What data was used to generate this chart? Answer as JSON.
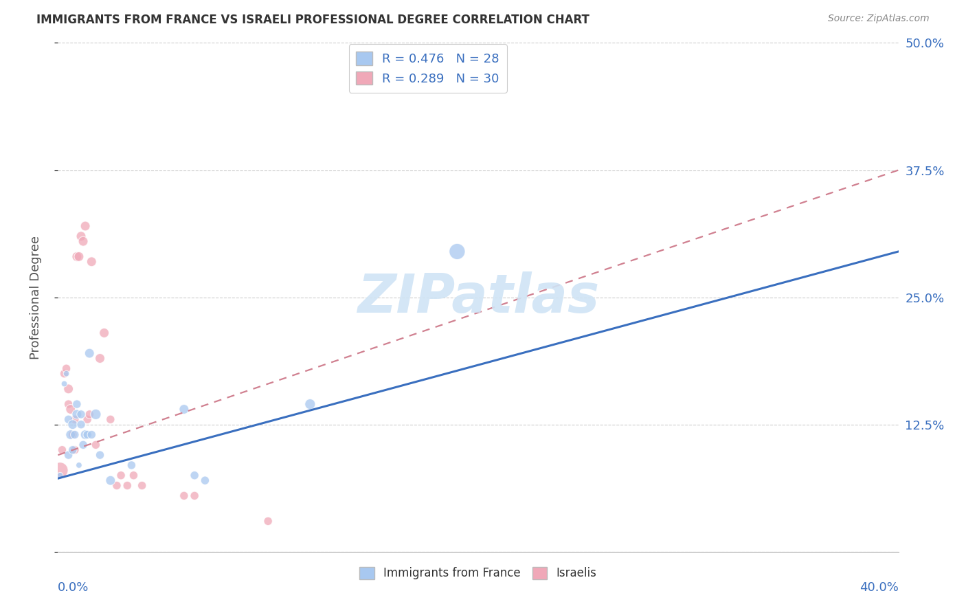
{
  "title": "IMMIGRANTS FROM FRANCE VS ISRAELI PROFESSIONAL DEGREE CORRELATION CHART",
  "source": "Source: ZipAtlas.com",
  "ylabel": "Professional Degree",
  "ytick_values": [
    0,
    0.125,
    0.25,
    0.375,
    0.5
  ],
  "ytick_labels": [
    "",
    "12.5%",
    "25.0%",
    "37.5%",
    "50.0%"
  ],
  "xlim": [
    0,
    0.4
  ],
  "ylim": [
    0,
    0.5
  ],
  "blue_color": "#a8c8f0",
  "pink_color": "#f0a8b8",
  "blue_line_color": "#3a6fbf",
  "pink_line_color": "#d06070",
  "pink_line_color_dashed": "#d08090",
  "watermark_text": "ZIPatlas",
  "watermark_color": "#d0e4f5",
  "france_x": [
    0.001,
    0.003,
    0.004,
    0.005,
    0.005,
    0.006,
    0.007,
    0.007,
    0.008,
    0.009,
    0.009,
    0.01,
    0.011,
    0.011,
    0.012,
    0.013,
    0.014,
    0.015,
    0.016,
    0.018,
    0.02,
    0.025,
    0.035,
    0.06,
    0.065,
    0.07,
    0.12,
    0.19
  ],
  "france_y": [
    0.075,
    0.165,
    0.175,
    0.095,
    0.13,
    0.115,
    0.1,
    0.125,
    0.115,
    0.135,
    0.145,
    0.085,
    0.125,
    0.135,
    0.105,
    0.115,
    0.115,
    0.195,
    0.115,
    0.135,
    0.095,
    0.07,
    0.085,
    0.14,
    0.075,
    0.07,
    0.145,
    0.295
  ],
  "france_sizes": [
    40,
    40,
    40,
    80,
    80,
    100,
    80,
    100,
    80,
    100,
    80,
    40,
    80,
    80,
    80,
    100,
    80,
    100,
    80,
    120,
    80,
    100,
    80,
    100,
    80,
    80,
    120,
    280
  ],
  "israel_x": [
    0.001,
    0.002,
    0.003,
    0.004,
    0.005,
    0.005,
    0.006,
    0.007,
    0.008,
    0.008,
    0.009,
    0.01,
    0.011,
    0.012,
    0.013,
    0.014,
    0.015,
    0.016,
    0.018,
    0.02,
    0.022,
    0.025,
    0.028,
    0.03,
    0.033,
    0.036,
    0.04,
    0.06,
    0.065,
    0.1
  ],
  "israel_y": [
    0.08,
    0.1,
    0.175,
    0.18,
    0.16,
    0.145,
    0.14,
    0.115,
    0.1,
    0.13,
    0.29,
    0.29,
    0.31,
    0.305,
    0.32,
    0.13,
    0.135,
    0.285,
    0.105,
    0.19,
    0.215,
    0.13,
    0.065,
    0.075,
    0.065,
    0.075,
    0.065,
    0.055,
    0.055,
    0.03
  ],
  "israel_sizes": [
    280,
    80,
    80,
    80,
    100,
    80,
    100,
    80,
    80,
    80,
    100,
    100,
    100,
    100,
    100,
    80,
    80,
    100,
    80,
    100,
    100,
    80,
    80,
    80,
    80,
    80,
    80,
    80,
    80,
    80
  ],
  "blue_line_x0": 0.0,
  "blue_line_y0": 0.072,
  "blue_line_x1": 0.4,
  "blue_line_y1": 0.295,
  "pink_line_x0": 0.0,
  "pink_line_y0": 0.095,
  "pink_line_x1": 0.4,
  "pink_line_y1": 0.375
}
